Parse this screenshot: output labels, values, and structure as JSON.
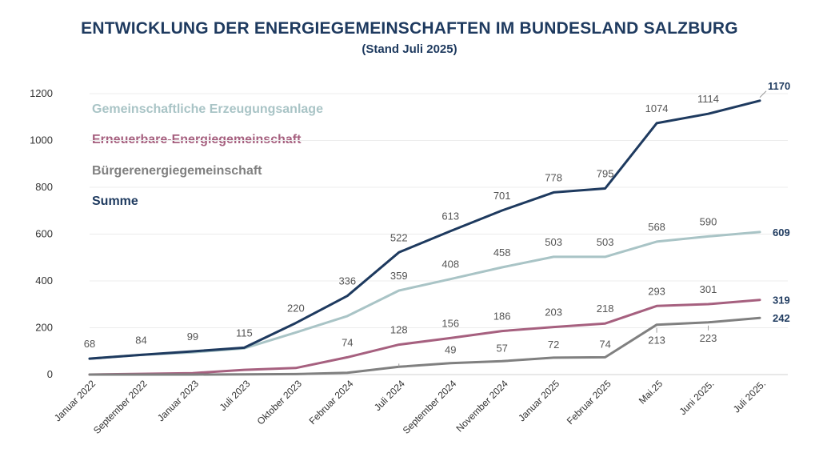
{
  "title": "ENTWICKLUNG DER ENERGIEGEMEINSCHAFTEN IM BUNDESLAND SALZBURG",
  "subtitle": "(Stand Juli 2025)",
  "chart_data": {
    "type": "line",
    "title": "ENTWICKLUNG DER ENERGIEGEMEINSCHAFTEN IM BUNDESLAND SALZBURG",
    "subtitle": "(Stand Juli 2025)",
    "xlabel": "",
    "ylabel": "",
    "ylim": [
      0,
      1200
    ],
    "yticks": [
      0,
      200,
      400,
      600,
      800,
      1000,
      1200
    ],
    "grid": "horizontal",
    "legend_position": "top-left",
    "categories": [
      "Januar 2022",
      "September 2022",
      "Januar 2023",
      "Juli 2023",
      "Oktober 2023",
      "Februar 2024",
      "Juli 2024",
      "September 2024",
      "November 2024",
      "Januar 2025",
      "Februar 2025",
      "Mai.25",
      "Juni 2025.",
      "Juli 2025."
    ],
    "series": [
      {
        "name": "Gemeinschaftliche Erzeugungsanlage",
        "color": "#a9c4c6",
        "values": [
          68,
          84,
          95,
          112,
          180,
          250,
          359,
          408,
          458,
          503,
          503,
          568,
          590,
          609
        ],
        "labels": [
          "",
          "",
          "",
          "",
          "",
          "",
          "359",
          "408",
          "458",
          "503",
          "503",
          "568",
          "590",
          "609"
        ]
      },
      {
        "name": "Erneuerbare-Energiegemeinschaft",
        "color": "#a6607f",
        "values": [
          0,
          3,
          6,
          20,
          28,
          74,
          128,
          156,
          186,
          203,
          218,
          293,
          301,
          319
        ],
        "labels": [
          "",
          "",
          "",
          "",
          "",
          "74",
          "128",
          "156",
          "186",
          "203",
          "218",
          "293",
          "301",
          "319"
        ]
      },
      {
        "name": "Bürgerenergiegemeinschaft",
        "color": "#808080",
        "values": [
          0,
          0,
          0,
          1,
          2,
          8,
          33,
          49,
          57,
          72,
          74,
          213,
          223,
          242
        ],
        "labels": [
          "",
          "",
          "",
          "",
          "",
          "",
          "",
          "49",
          "57",
          "72",
          "74",
          "213",
          "223",
          "242"
        ]
      },
      {
        "name": "Summe",
        "color": "#1e3a5f",
        "values": [
          68,
          84,
          99,
          115,
          220,
          336,
          522,
          613,
          701,
          778,
          795,
          1074,
          1114,
          1170
        ],
        "labels": [
          "68",
          "84",
          "99",
          "115",
          "220",
          "336",
          "522",
          "613",
          "701",
          "778",
          "795",
          "1074",
          "1114",
          "1170"
        ]
      }
    ]
  }
}
